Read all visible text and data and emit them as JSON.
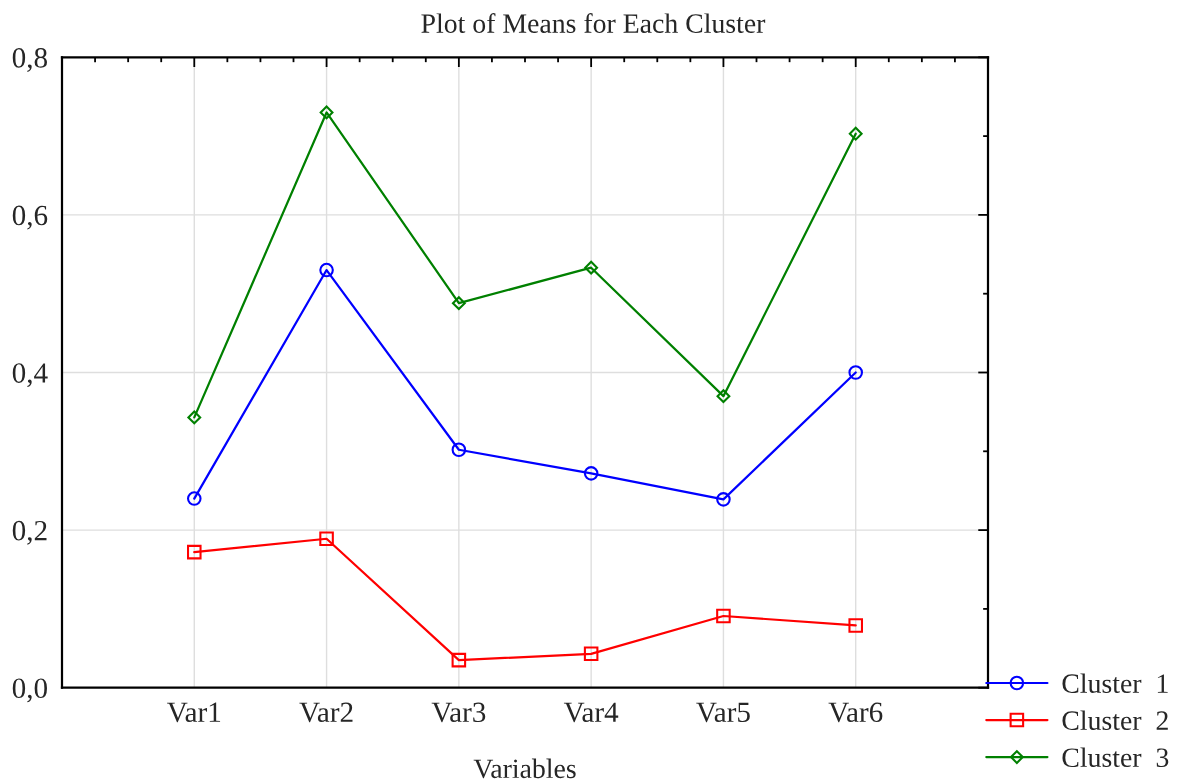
{
  "chart_data": {
    "type": "line",
    "title": "Plot of Means for Each Cluster",
    "xlabel": "Variables",
    "categories": [
      "Var1",
      "Var2",
      "Var3",
      "Var4",
      "Var5",
      "Var6"
    ],
    "series": [
      {
        "name": "Cluster  1",
        "color": "#0000ff",
        "marker": "circle",
        "values": [
          0.24,
          0.53,
          0.302,
          0.272,
          0.239,
          0.4
        ]
      },
      {
        "name": "Cluster  2",
        "color": "#ff0000",
        "marker": "square",
        "values": [
          0.172,
          0.189,
          0.035,
          0.043,
          0.091,
          0.079
        ]
      },
      {
        "name": "Cluster  3",
        "color": "#008000",
        "marker": "diamond",
        "values": [
          0.343,
          0.73,
          0.488,
          0.533,
          0.37,
          0.703
        ]
      }
    ],
    "ylim": [
      0,
      0.8
    ],
    "yticks": [
      {
        "value": 0,
        "label": "0,0"
      },
      {
        "value": 0.1,
        "label": null
      },
      {
        "value": 0.2,
        "label": "0,2"
      },
      {
        "value": 0.3,
        "label": null
      },
      {
        "value": 0.4,
        "label": "0,4"
      },
      {
        "value": 0.5,
        "label": null
      },
      {
        "value": 0.6,
        "label": "0,6"
      },
      {
        "value": 0.7,
        "label": null
      },
      {
        "value": 0.8,
        "label": "0,8"
      }
    ],
    "grid": true,
    "legend": "bottom right",
    "line_style": "solid"
  }
}
